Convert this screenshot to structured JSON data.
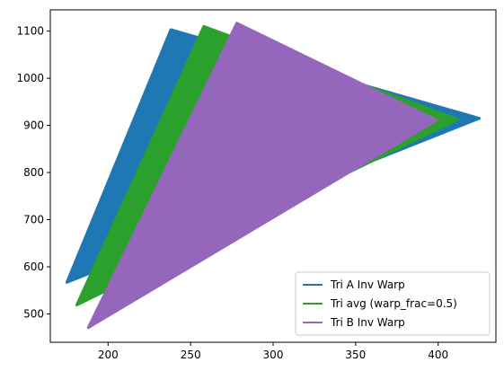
{
  "chart_data": {
    "type": "area",
    "title": "",
    "xlabel": "",
    "ylabel": "",
    "xlim": [
      165,
      435
    ],
    "ylim": [
      440,
      1145
    ],
    "xticks": [
      200,
      250,
      300,
      350,
      400
    ],
    "yticks": [
      500,
      600,
      700,
      800,
      900,
      1000,
      1100
    ],
    "grid": false,
    "legend_position": "lower-right",
    "series": [
      {
        "name": "Tri A Inv Warp",
        "color": "#1f77b4",
        "points": [
          [
            175,
            567
          ],
          [
            238,
            1103
          ],
          [
            425,
            915
          ]
        ]
      },
      {
        "name": "Tri avg (warp_frac=0.5)",
        "color": "#2ca02c",
        "points": [
          [
            181,
            519
          ],
          [
            258,
            1110
          ],
          [
            412,
            913
          ]
        ]
      },
      {
        "name": "Tri B Inv Warp",
        "color": "#9467bd",
        "points": [
          [
            188,
            471
          ],
          [
            278,
            1117
          ],
          [
            399,
            911
          ]
        ]
      }
    ]
  }
}
